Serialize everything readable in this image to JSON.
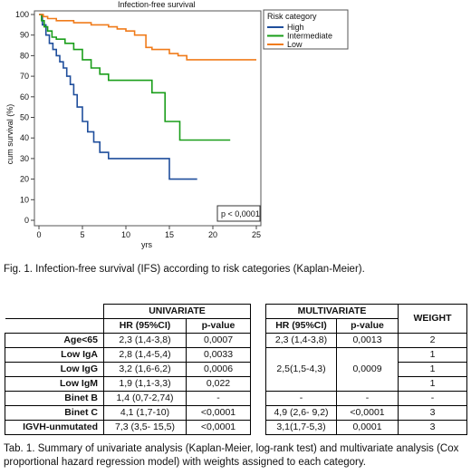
{
  "chart_data": {
    "type": "line",
    "title": "Infection-free survival",
    "xlabel": "yrs",
    "ylabel": "cum survival (%)",
    "xlim": [
      0,
      25
    ],
    "ylim": [
      0,
      100
    ],
    "x_ticks": [
      0,
      5,
      10,
      15,
      20,
      25
    ],
    "y_ticks": [
      0,
      10,
      20,
      30,
      40,
      50,
      60,
      70,
      80,
      90,
      100
    ],
    "legend_title": "Risk category",
    "legend_position": "top-right",
    "annotation": "p < 0,0001",
    "series": [
      {
        "name": "High",
        "color": "#1f4e9c",
        "x": [
          0,
          0.4,
          0.8,
          1.2,
          1.6,
          2.0,
          2.4,
          2.8,
          3.2,
          3.6,
          4.0,
          4.4,
          5.0,
          5.6,
          6.3,
          7.0,
          8.0,
          9.0,
          10.0,
          11.0,
          12.0,
          13.0,
          14.0,
          15.0,
          16.0,
          17.0,
          18.2
        ],
        "y": [
          100,
          95,
          90,
          86,
          83,
          80,
          77,
          74,
          70,
          66,
          61,
          55,
          48,
          43,
          38,
          33,
          30,
          30,
          30,
          30,
          30,
          30,
          30,
          20,
          20,
          20,
          20
        ]
      },
      {
        "name": "Intermediate",
        "color": "#1a9e1a",
        "x": [
          0,
          0.3,
          0.6,
          1.0,
          1.5,
          2.0,
          3.0,
          4.0,
          5.0,
          6.0,
          7.0,
          8.0,
          9.5,
          11.0,
          13.0,
          14.5,
          15.5,
          16.2,
          18.0,
          20.0,
          22.0
        ],
        "y": [
          100,
          97,
          94,
          92,
          89,
          88,
          86,
          83,
          78,
          74,
          71,
          68,
          68,
          68,
          62,
          48,
          48,
          39,
          39,
          39,
          39
        ]
      },
      {
        "name": "Low",
        "color": "#f07b1a",
        "x": [
          0,
          0.5,
          1.0,
          2.0,
          3.0,
          4.0,
          5.0,
          6.0,
          7.0,
          8.0,
          9.0,
          10.0,
          11.0,
          12.3,
          13.0,
          14.0,
          15.0,
          16.0,
          17.0,
          18.0,
          20.0,
          22.0,
          24.0,
          25.0
        ],
        "y": [
          100,
          99,
          98,
          97,
          97,
          96,
          96,
          95,
          95,
          94,
          93,
          92,
          90,
          84,
          83,
          83,
          81,
          80,
          78,
          78,
          78,
          78,
          78,
          78
        ]
      }
    ]
  },
  "figure_caption": "Fig. 1. Infection-free survival (IFS) according to risk categories (Kaplan-Meier).",
  "table": {
    "group_headers": {
      "univariate": "UNIVARIATE",
      "multivariate": "MULTIVARIATE",
      "weight": "WEIGHT"
    },
    "column_headers": {
      "hr": "HR (95%CI)",
      "p": "p-value"
    },
    "rows": [
      {
        "label": "Age<65",
        "uni_hr": "2,3 (1,4-3,8)",
        "uni_p": "0,0007",
        "multi_hr": "2,3 (1,4-3,8)",
        "multi_p": "0,0013",
        "weight": "2"
      },
      {
        "label": "Low IgA",
        "uni_hr": "2,8 (1,4-5,4)",
        "uni_p": "0,0033",
        "weight": "1"
      },
      {
        "label": "Low IgG",
        "uni_hr": "3,2 (1,6-6,2)",
        "uni_p": "0,0006",
        "weight": "1"
      },
      {
        "label": "Low IgM",
        "uni_hr": "1,9 (1,1-3,3)",
        "uni_p": "0,022",
        "weight": "1"
      },
      {
        "label": "Binet B",
        "uni_hr": "1,4 (0,7-2,74)",
        "uni_p": "-",
        "multi_hr": "-",
        "multi_p": "-",
        "weight": "-"
      },
      {
        "label": "Binet C",
        "uni_hr": "4,1 (1,7-10)",
        "uni_p": "<0,0001",
        "multi_hr": "4,9 (2,6- 9,2)",
        "multi_p": "<0,0001",
        "weight": "3"
      },
      {
        "label": "IGVH-unmutated",
        "uni_hr": "7,3 (3,5- 15,5)",
        "uni_p": "<0,0001",
        "multi_hr": "3,1(1,7-5,3)",
        "multi_p": "0,0001",
        "weight": "3"
      }
    ],
    "ig_merged": {
      "multi_hr": "2,5(1,5-4,3)",
      "multi_p": "0,0009"
    }
  },
  "table_caption": "Tab. 1. Summary of univariate analysis (Kaplan-Meier, log-rank test) and multivariate analysis (Cox proportional hazard regression model) with weights assigned to each category."
}
